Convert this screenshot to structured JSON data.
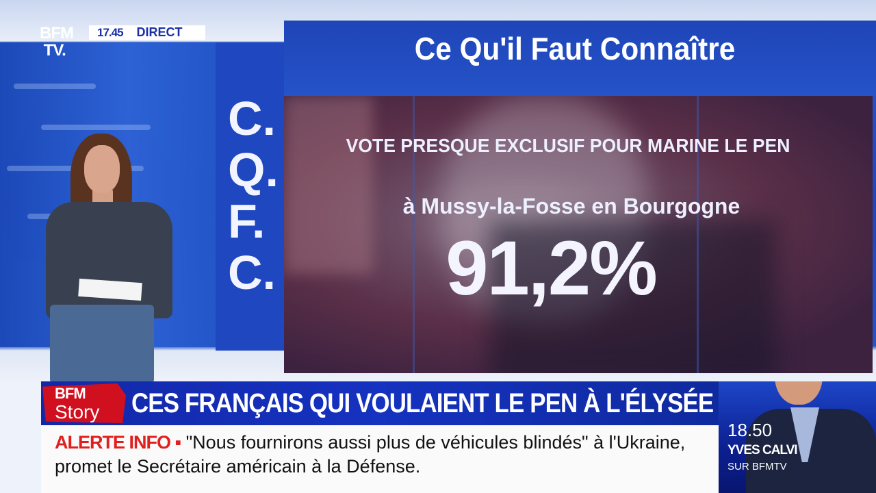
{
  "channel": {
    "logo": "BFM TV.",
    "time": "17.45",
    "live_label": "DIRECT"
  },
  "graphic": {
    "title": "Ce Qu'il Faut Connaître",
    "acronym": [
      "C.",
      "Q.",
      "F.",
      "C."
    ],
    "subtitle": "VOTE PRESQUE EXCLUSIF POUR MARINE LE PEN",
    "location": "à Mussy-la-Fosse en Bourgogne",
    "stat": "91,2%"
  },
  "lower_third": {
    "show_logo": "BFM Story",
    "headline": "CES FRANÇAIS QUI VOULAIENT LE PEN À L'ÉLYSÉE",
    "alert_label": "ALERTE INFO ▪",
    "alert_text": "\"Nous fournirons aussi plus de véhicules blindés\" à l'Ukraine, promet le Secrétaire américain à la Défense."
  },
  "promo": {
    "time": "18.50",
    "name": "YVES CALVI",
    "channel": "SUR BFMTV"
  },
  "colors": {
    "brand_blue": "#1532c0",
    "alert_red": "#e0201e",
    "story_red": "#d0101e"
  }
}
